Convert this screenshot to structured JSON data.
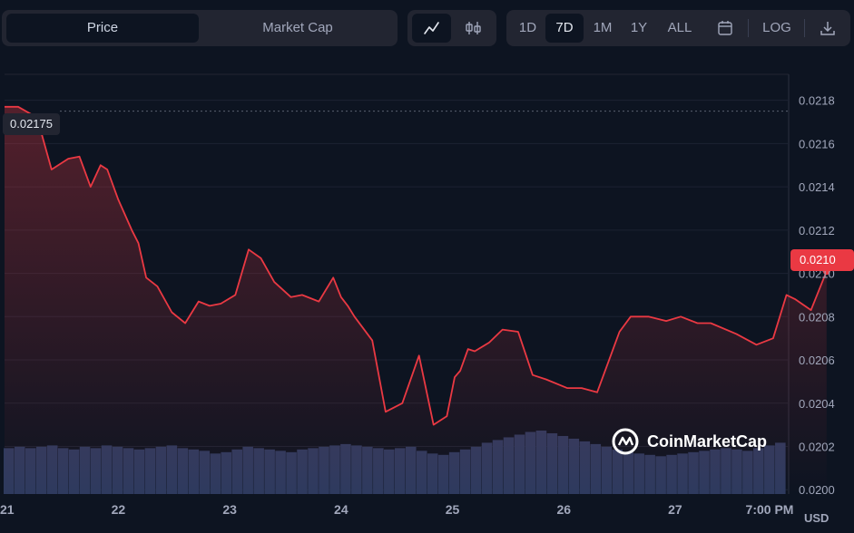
{
  "tabs": {
    "price": "Price",
    "market_cap": "Market Cap"
  },
  "chart_type_icons": {
    "line": "line-chart-icon",
    "candle": "candlestick-icon"
  },
  "ranges": [
    "1D",
    "7D",
    "1M",
    "1Y",
    "ALL"
  ],
  "active_range": "7D",
  "toolbar": {
    "calendar_icon": "calendar-icon",
    "log_label": "LOG",
    "download_icon": "download-icon"
  },
  "currency": "USD",
  "watermark": "CoinMarketCap",
  "colors": {
    "background": "#0d1421",
    "line": "#ea3943",
    "volume": "#2e3a5e",
    "panel": "#222531"
  },
  "chart_data": {
    "type": "line",
    "xlabel": "",
    "ylabel": "",
    "x_ticks": [
      "21",
      "22",
      "23",
      "24",
      "25",
      "26",
      "27",
      "7:00 PM"
    ],
    "y_ticks": [
      "0.0200",
      "0.0202",
      "0.0204",
      "0.0206",
      "0.0208",
      "0.0210",
      "0.0212",
      "0.0214",
      "0.0216",
      "0.0218"
    ],
    "ylim": [
      0.01998,
      0.02192
    ],
    "xlim": [
      0,
      7.26
    ],
    "start_label": "0.02175",
    "current_label": "0.0210",
    "grid": true,
    "series": [
      {
        "x": [
          0,
          0.17,
          0.3,
          0.45,
          0.55,
          0.65,
          0.74,
          0.8,
          0.9,
          1.02,
          1.08,
          1.15,
          1.25,
          1.38,
          1.5,
          1.62,
          1.72,
          1.82,
          1.95,
          2.07,
          2.18,
          2.3,
          2.45,
          2.55,
          2.7,
          2.83,
          2.9,
          2.96,
          3.02,
          3.18,
          3.3,
          3.45,
          3.6,
          3.73,
          3.85,
          3.92,
          3.97,
          4.04,
          4.1,
          4.23,
          4.35,
          4.49,
          4.62,
          4.74,
          4.93,
          5.06,
          5.2,
          5.4,
          5.5,
          5.66,
          5.82,
          5.95,
          6.1,
          6.22,
          6.45,
          6.63,
          6.78,
          6.9,
          6.98,
          7.12,
          7.26
        ],
        "y": [
          0.02177,
          0.02172,
          0.02148,
          0.02153,
          0.02154,
          0.0214,
          0.0215,
          0.02148,
          0.02134,
          0.0212,
          0.02114,
          0.02098,
          0.02094,
          0.02082,
          0.02077,
          0.02087,
          0.02085,
          0.02086,
          0.0209,
          0.02111,
          0.02107,
          0.02096,
          0.02089,
          0.0209,
          0.02087,
          0.02098,
          0.02089,
          0.02085,
          0.0208,
          0.02069,
          0.02036,
          0.0204,
          0.02062,
          0.0203,
          0.02034,
          0.02052,
          0.02055,
          0.02065,
          0.02064,
          0.02068,
          0.02074,
          0.02073,
          0.02053,
          0.02051,
          0.02047,
          0.02047,
          0.02045,
          0.02073,
          0.0208,
          0.0208,
          0.02078,
          0.0208,
          0.02077,
          0.02077,
          0.02072,
          0.02067,
          0.0207,
          0.0209,
          0.02088,
          0.02083,
          0.02101
        ]
      }
    ],
    "volume": [
      34,
      35,
      34,
      35,
      36,
      34,
      33,
      35,
      34,
      36,
      35,
      34,
      33,
      34,
      35,
      36,
      34,
      33,
      32,
      30,
      31,
      33,
      35,
      34,
      33,
      32,
      31,
      33,
      34,
      35,
      36,
      37,
      36,
      35,
      34,
      33,
      34,
      35,
      32,
      30,
      29,
      31,
      33,
      35,
      38,
      40,
      42,
      44,
      46,
      47,
      45,
      43,
      41,
      39,
      37,
      35,
      33,
      31,
      30,
      29,
      28,
      29,
      30,
      31,
      32,
      33,
      34,
      33,
      32,
      34,
      36,
      38
    ]
  }
}
